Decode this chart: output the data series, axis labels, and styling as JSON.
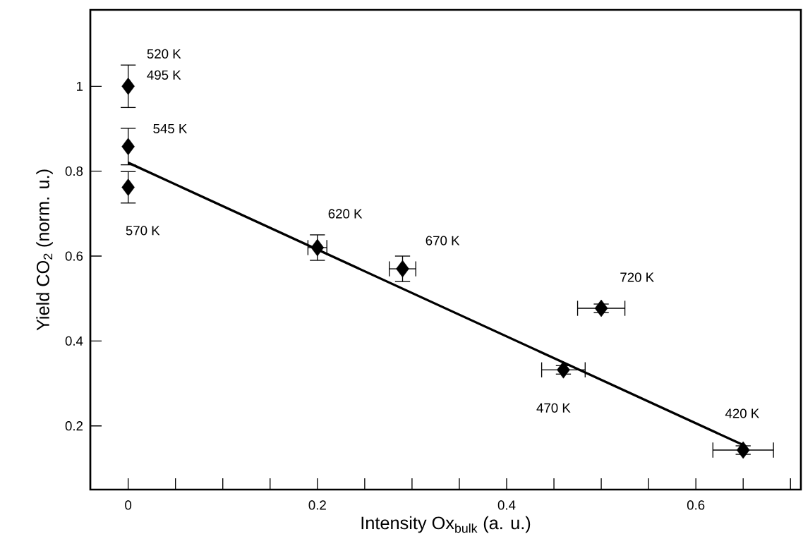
{
  "chart_data": {
    "type": "scatter",
    "xlabel": "Intensity Ox$_{bulk}$ (a. u.)",
    "ylabel": "Yield CO$_{2}$ (norm. u.)",
    "xlim": [
      -0.04,
      0.711
    ],
    "ylim": [
      0.05,
      1.18
    ],
    "xticks": [
      0,
      {
        "value": 0.05,
        "label": null
      },
      {
        "value": 0.1,
        "label": null
      },
      {
        "value": 0.15,
        "label": null
      },
      0.2,
      {
        "value": 0.25,
        "label": null
      },
      {
        "value": 0.3,
        "label": null
      },
      {
        "value": 0.35,
        "label": null
      },
      0.4,
      {
        "value": 0.45,
        "label": null
      },
      {
        "value": 0.5,
        "label": null
      },
      {
        "value": 0.55,
        "label": null
      },
      0.6,
      {
        "value": 0.65,
        "label": null
      },
      {
        "value": 0.7,
        "label": null
      }
    ],
    "yticks": [
      0.2,
      0.4,
      0.6,
      0.8,
      1
    ],
    "grid": false,
    "marker": "diamond",
    "series": [
      {
        "color": "#000000",
        "x": [
          0,
          0,
          0,
          0.2,
          0.29,
          0.5,
          0.46,
          0.65
        ],
        "values": [
          1.0,
          0.858,
          0.762,
          0.62,
          0.57,
          0.477,
          0.332,
          0.143
        ],
        "errors": [
          0.05,
          0.043,
          0.037,
          0.03,
          0.03,
          0.01,
          0.01,
          0.01
        ],
        "xerrors": [
          null,
          null,
          null,
          0.01,
          0.014,
          0.025,
          0.023,
          0.032
        ]
      },
      {
        "type": "line",
        "marker": "none",
        "color": "#000000",
        "x": [
          0,
          0.65
        ],
        "values": [
          0.82,
          0.155
        ]
      }
    ],
    "annotations": [
      {
        "text": "520 K",
        "x": 0,
        "y": 1.0
      },
      {
        "text": "495 K",
        "x": 0,
        "y": 1.0
      },
      {
        "text": "545 K",
        "x": 0,
        "y": 0.858
      },
      {
        "text": "570 K",
        "x": 0,
        "y": 0.762
      },
      {
        "text": "620 K",
        "x": 0.2,
        "y": 0.62
      },
      {
        "text": "670 K",
        "x": 0.29,
        "y": 0.57
      },
      {
        "text": "720 K",
        "x": 0.5,
        "y": 0.477
      },
      {
        "text": "470 K",
        "x": 0.46,
        "y": 0.332
      },
      {
        "text": "420 K",
        "x": 0.65,
        "y": 0.143
      }
    ]
  }
}
